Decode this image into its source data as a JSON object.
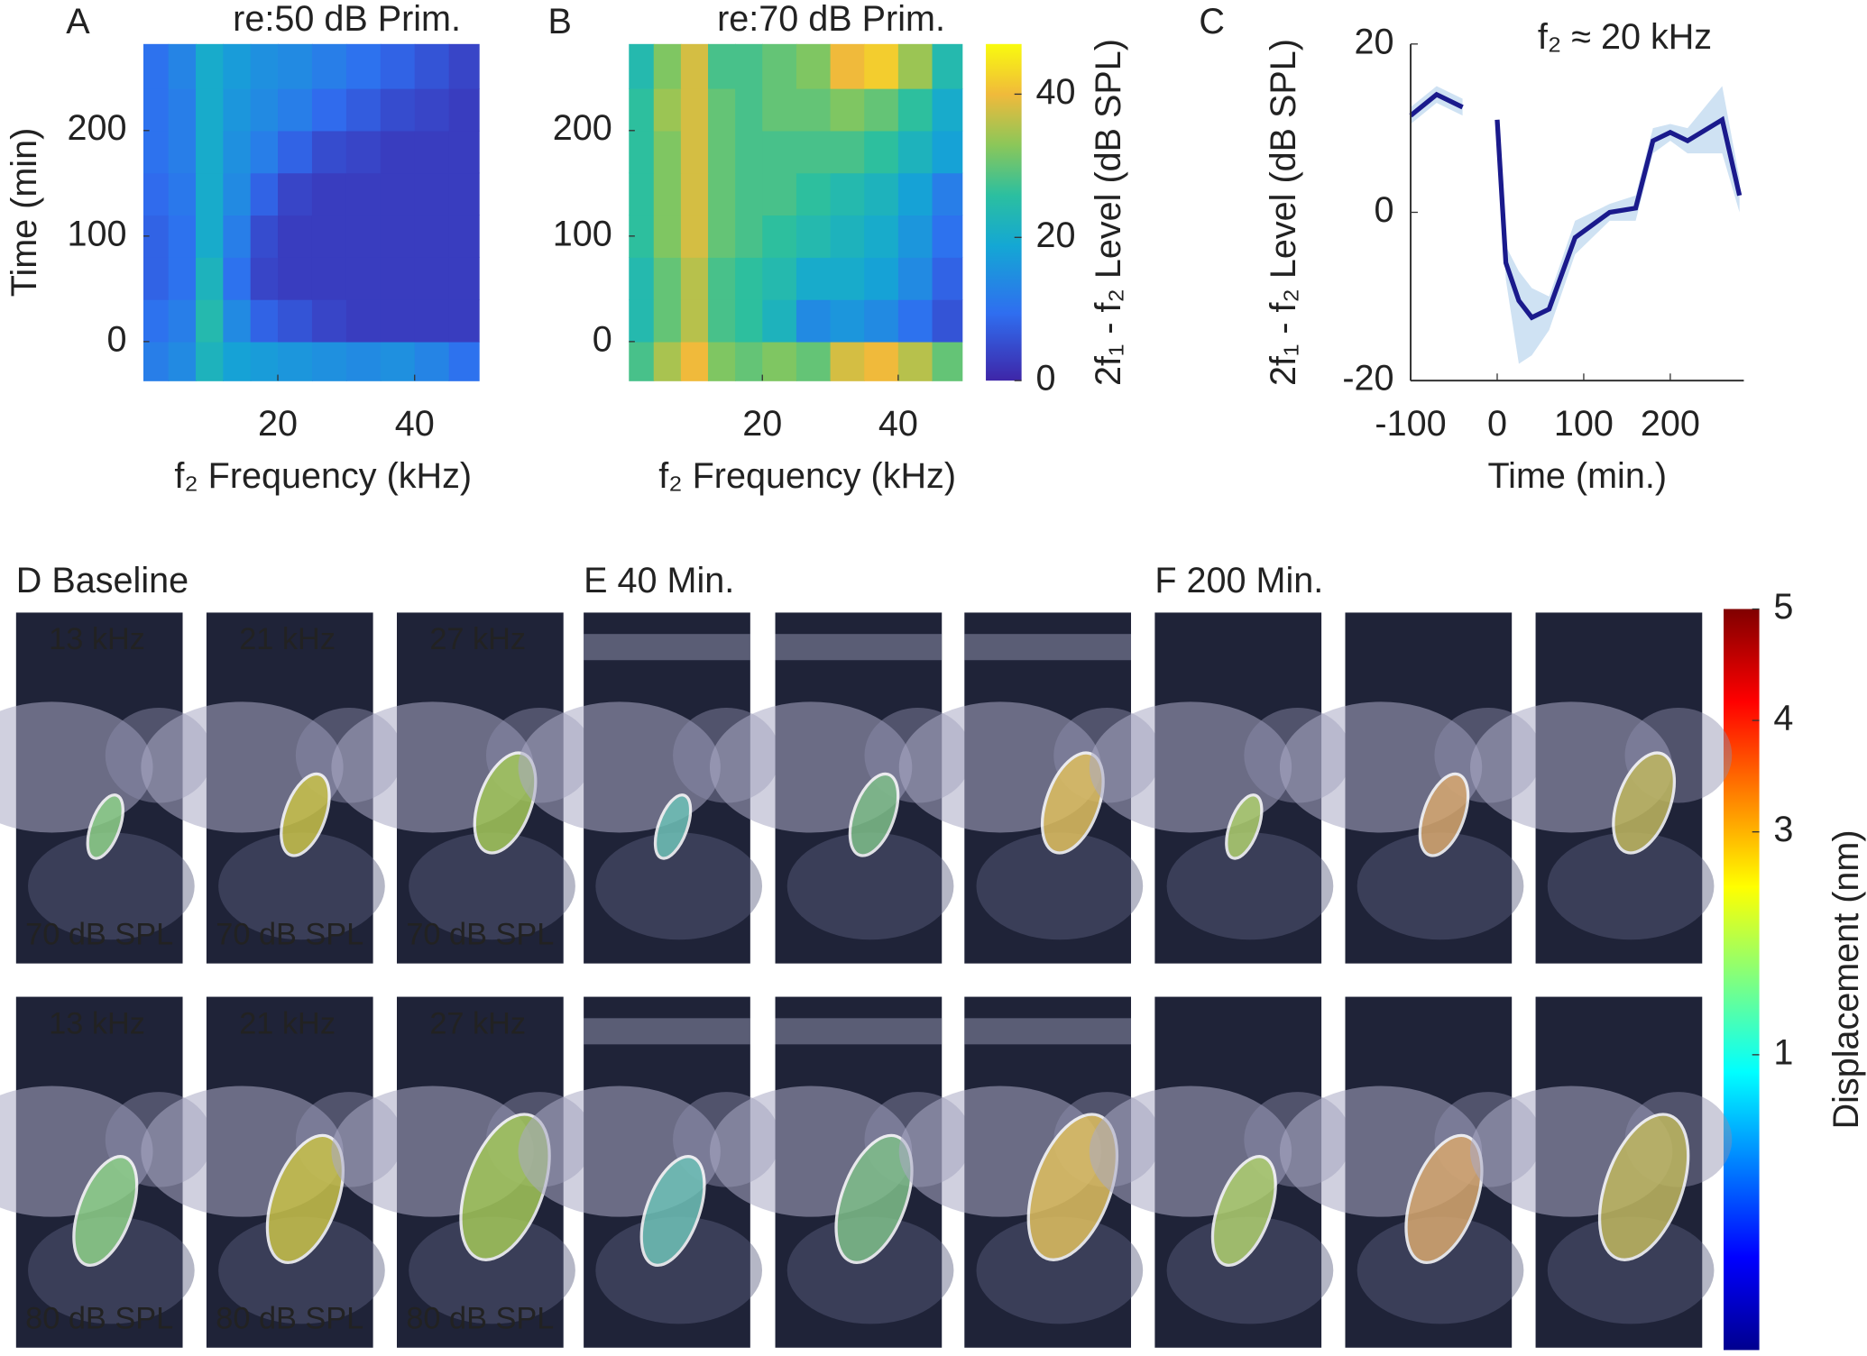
{
  "chart_data": [
    {
      "type": "heatmap",
      "panel_label": "A",
      "title": "re:50 dB Prim.",
      "xlabel": "f₂ Frequency (kHz)",
      "ylabel": "Time (min)",
      "x_edges": [
        0.35,
        4,
        8,
        12,
        16,
        20,
        25,
        30,
        35,
        40,
        45,
        49.4
      ],
      "y_edges": [
        -37,
        0,
        40,
        80,
        120,
        160,
        200,
        240,
        282
      ],
      "values": [
        [
          12,
          14,
          22,
          18,
          17,
          16,
          15,
          14,
          15,
          13,
          10
        ],
        [
          10,
          12,
          24,
          14,
          8,
          6,
          4,
          3,
          3,
          3,
          3
        ],
        [
          8,
          10,
          22,
          10,
          4,
          3,
          3,
          3,
          3,
          3,
          3
        ],
        [
          8,
          10,
          20,
          12,
          5,
          3,
          3,
          3,
          3,
          3,
          3
        ],
        [
          9,
          11,
          20,
          14,
          8,
          4,
          3,
          3,
          3,
          3,
          3
        ],
        [
          10,
          12,
          20,
          15,
          12,
          8,
          5,
          4,
          3,
          3,
          3
        ],
        [
          10,
          12,
          20,
          16,
          14,
          12,
          9,
          7,
          5,
          4,
          3
        ],
        [
          10,
          13,
          20,
          17,
          15,
          14,
          12,
          10,
          8,
          6,
          4
        ]
      ],
      "xlim": [
        0.35,
        49.4
      ],
      "ylim": [
        -37,
        282
      ],
      "xticks": [
        20,
        40
      ],
      "yticks": [
        0,
        100,
        200
      ],
      "colormap": "parula",
      "clim": [
        0,
        47
      ]
    },
    {
      "type": "heatmap",
      "panel_label": "B",
      "title": "re:70 dB Prim.",
      "xlabel": "f₂ Frequency (kHz)",
      "x_edges": [
        0.35,
        4,
        8,
        12,
        16,
        20,
        25,
        30,
        35,
        40,
        45,
        49.4
      ],
      "y_edges": [
        -37,
        0,
        40,
        80,
        120,
        160,
        200,
        240,
        282
      ],
      "values": [
        [
          28,
          35,
          40,
          32,
          30,
          32,
          30,
          38,
          40,
          36,
          30
        ],
        [
          24,
          30,
          36,
          28,
          26,
          22,
          14,
          16,
          14,
          10,
          6
        ],
        [
          24,
          30,
          36,
          28,
          26,
          24,
          20,
          20,
          18,
          14,
          8
        ],
        [
          26,
          32,
          38,
          30,
          28,
          26,
          24,
          22,
          20,
          16,
          10
        ],
        [
          26,
          32,
          38,
          30,
          28,
          28,
          26,
          24,
          22,
          18,
          12
        ],
        [
          26,
          32,
          38,
          30,
          28,
          28,
          28,
          28,
          26,
          22,
          18
        ],
        [
          26,
          34,
          38,
          30,
          28,
          30,
          30,
          32,
          30,
          26,
          20
        ],
        [
          24,
          32,
          38,
          28,
          28,
          30,
          32,
          40,
          42,
          34,
          24
        ]
      ],
      "xlim": [
        0.35,
        49.4
      ],
      "ylim": [
        -37,
        282
      ],
      "xticks": [
        20,
        40
      ],
      "yticks": [
        0,
        100,
        200
      ],
      "colormap": "parula",
      "clim": [
        0,
        47
      ]
    },
    {
      "type": "colorbar",
      "label": "2f₁ - f₂ Level (dB SPL)",
      "colormap": "parula",
      "ylim": [
        0,
        47
      ],
      "yticks": [
        0,
        20,
        40
      ]
    },
    {
      "type": "line",
      "panel_label": "C",
      "xlabel": "Time (min.)",
      "ylabel": "2f₁ - f₂ Level (dB SPL)",
      "annotation": "f₂ ≈ 20 kHz",
      "x": [
        -100,
        -70,
        -40,
        -20,
        0,
        10,
        25,
        40,
        60,
        90,
        130,
        160,
        180,
        200,
        220,
        260,
        280
      ],
      "series": [
        {
          "color": "#1a1a8c",
          "band_color": "#cfe2f3",
          "values": [
            11.5,
            14,
            12.5,
            null,
            11,
            -6,
            -10.5,
            -12.5,
            -11.5,
            -3,
            0,
            0.5,
            8.5,
            9.5,
            8.5,
            11,
            2
          ],
          "upper": [
            12.5,
            15,
            13.5,
            null,
            11,
            -4,
            -7,
            -9,
            -10,
            -1,
            1,
            2,
            10,
            10.5,
            10,
            15,
            4
          ],
          "lower": [
            10.5,
            13,
            11.5,
            null,
            11,
            -8,
            -18,
            -17,
            -14,
            -5,
            -1,
            -1,
            7,
            8.5,
            7,
            7,
            0
          ]
        }
      ],
      "xlim": [
        -100,
        285
      ],
      "ylim": [
        -20,
        20
      ],
      "xticks": [
        -100,
        0,
        100,
        200
      ],
      "yticks": [
        -20,
        0,
        20
      ]
    },
    {
      "type": "colorbar",
      "label": "Displacement (nm)",
      "colormap": "jet",
      "ylim": [
        -1.65,
        5
      ],
      "yticks": [
        1,
        3,
        4,
        5
      ]
    }
  ],
  "figure_panels": [
    {
      "title": "D Baseline",
      "frequencies": [
        "13 kHz",
        "21 kHz",
        "27 kHz"
      ],
      "levels": [
        "70 dB SPL",
        "80 dB SPL"
      ]
    },
    {
      "title": "E 40 Min."
    },
    {
      "title": "F 200 Min."
    }
  ]
}
